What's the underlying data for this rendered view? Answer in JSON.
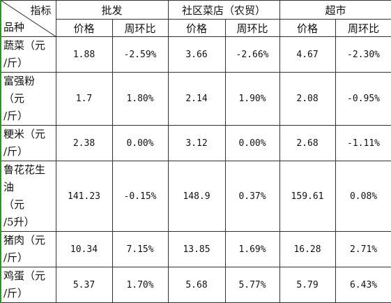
{
  "table": {
    "corner": {
      "top": "指标",
      "bottom": "品种"
    },
    "groups": [
      "批发",
      "社区菜店（农贸）",
      "超市"
    ],
    "subheaders": [
      "价格",
      "周环比",
      "价格",
      "周环比",
      "价格",
      "周环比"
    ],
    "rows": [
      {
        "label": [
          "蔬菜（元",
          "/斤）"
        ],
        "cells": [
          "1.88",
          "-2.59%",
          "3.66",
          "-2.66%",
          "4.67",
          "-2.30%"
        ]
      },
      {
        "label": [
          "富强粉",
          "（元",
          "/斤）"
        ],
        "cells": [
          "1.7",
          "1.80%",
          "2.14",
          "1.90%",
          "2.08",
          "-0.95%"
        ]
      },
      {
        "label": [
          "粳米（元",
          "/斤）"
        ],
        "cells": [
          "2.38",
          "0.00%",
          "3.12",
          "0.00%",
          "2.68",
          "-1.11%"
        ]
      },
      {
        "label": [
          "鲁花花生",
          "油",
          "（元",
          "/5升）"
        ],
        "cells": [
          "141.23",
          "-0.15%",
          "148.9",
          "0.37%",
          "159.61",
          "0.08%"
        ]
      },
      {
        "label": [
          "猪肉（元",
          "/斤）"
        ],
        "cells": [
          "10.34",
          "7.15%",
          "13.85",
          "1.69%",
          "16.28",
          "2.71%"
        ]
      },
      {
        "label": [
          "鸡蛋（元",
          "/斤）"
        ],
        "cells": [
          "5.37",
          "1.70%",
          "5.68",
          "5.77%",
          "5.79",
          "6.43%"
        ]
      }
    ]
  }
}
